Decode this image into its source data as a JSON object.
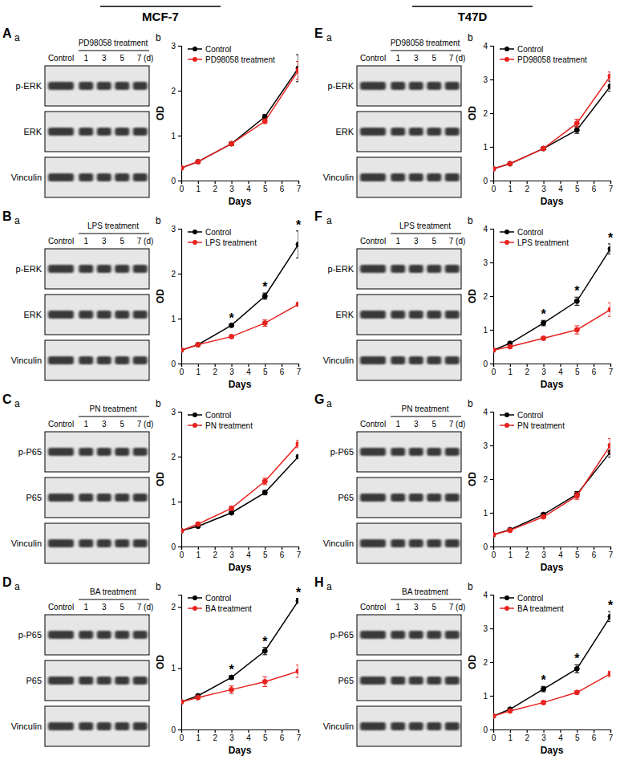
{
  "headers": [
    {
      "text": "MCF-7"
    },
    {
      "text": "T47D"
    }
  ],
  "chart_data": [
    {
      "type": "line",
      "panel": "A",
      "blot_label": "a",
      "chart_label": "b",
      "blot": {
        "treatment": "PD98058 treatment",
        "lanes": [
          "Control",
          "1",
          "3",
          "5",
          "7 (d)"
        ],
        "rows": [
          "p-ERK",
          "ERK",
          "Vinculin"
        ]
      },
      "x_label": "Days",
      "y_label": "OD",
      "x": [
        0,
        1,
        3,
        5,
        7
      ],
      "xlim": [
        0,
        7
      ],
      "xticks": [
        0,
        1,
        2,
        3,
        4,
        5,
        6,
        7
      ],
      "ylim": [
        0,
        3
      ],
      "yticks": [
        0,
        1,
        2,
        3
      ],
      "legend": "upper left",
      "series": [
        {
          "name": "Control",
          "color": "#000000",
          "marker": "circle",
          "values": [
            0.28,
            0.42,
            0.82,
            1.42,
            2.5
          ],
          "errors": [
            0.02,
            0.02,
            0.04,
            0.05,
            0.3
          ]
        },
        {
          "name": "PD98058 treatment",
          "color": "#e8231f",
          "marker": "circle",
          "values": [
            0.28,
            0.42,
            0.82,
            1.32,
            2.45
          ],
          "errors": [
            0.02,
            0.02,
            0.04,
            0.05,
            0.2
          ]
        }
      ],
      "annotations": []
    },
    {
      "type": "line",
      "panel": "B",
      "blot_label": "a",
      "chart_label": "b",
      "blot": {
        "treatment": "LPS treatment",
        "lanes": [
          "Control",
          "1",
          "3",
          "5",
          "7 (d)"
        ],
        "rows": [
          "p-ERK",
          "ERK",
          "Vinculin"
        ]
      },
      "x_label": "Days",
      "y_label": "OD",
      "x": [
        0,
        1,
        3,
        5,
        7
      ],
      "xlim": [
        0,
        7
      ],
      "xticks": [
        0,
        1,
        2,
        3,
        4,
        5,
        6,
        7
      ],
      "ylim": [
        0,
        3
      ],
      "yticks": [
        0,
        1,
        2,
        3
      ],
      "legend": "upper left",
      "series": [
        {
          "name": "Control",
          "color": "#000000",
          "marker": "circle",
          "values": [
            0.3,
            0.42,
            0.85,
            1.5,
            2.65
          ],
          "errors": [
            0.02,
            0.02,
            0.03,
            0.07,
            0.3
          ]
        },
        {
          "name": "LPS treatment",
          "color": "#e8231f",
          "marker": "circle",
          "values": [
            0.3,
            0.42,
            0.6,
            0.9,
            1.32
          ],
          "errors": [
            0.02,
            0.02,
            0.03,
            0.07,
            0.03
          ]
        }
      ],
      "annotations": [
        {
          "x": 3,
          "text": "*"
        },
        {
          "x": 5,
          "text": "*"
        },
        {
          "x": 7,
          "text": "*"
        }
      ]
    },
    {
      "type": "line",
      "panel": "C",
      "blot_label": "a",
      "chart_label": "b",
      "blot": {
        "treatment": "PN treatment",
        "lanes": [
          "Control",
          "1",
          "3",
          "5",
          "7 (d)"
        ],
        "rows": [
          "p-P65",
          "P65",
          "Vinculin"
        ]
      },
      "x_label": "Days",
      "y_label": "OD",
      "x": [
        0,
        1,
        3,
        5,
        7
      ],
      "xlim": [
        0,
        7
      ],
      "xticks": [
        0,
        1,
        2,
        3,
        4,
        5,
        6,
        7
      ],
      "ylim": [
        0,
        3
      ],
      "yticks": [
        0,
        1,
        2,
        3
      ],
      "legend": "upper left",
      "series": [
        {
          "name": "Control",
          "color": "#000000",
          "marker": "circle",
          "values": [
            0.35,
            0.45,
            0.75,
            1.2,
            2.0
          ],
          "errors": [
            0.02,
            0.02,
            0.03,
            0.05,
            0.03
          ]
        },
        {
          "name": "PN treatment",
          "color": "#e8231f",
          "marker": "circle",
          "values": [
            0.35,
            0.5,
            0.85,
            1.45,
            2.28
          ],
          "errors": [
            0.02,
            0.03,
            0.04,
            0.07,
            0.08
          ]
        }
      ],
      "annotations": []
    },
    {
      "type": "line",
      "panel": "D",
      "blot_label": "a",
      "chart_label": "b",
      "blot": {
        "treatment": "BA treatment",
        "lanes": [
          "Control",
          "1",
          "3",
          "5",
          "7 (d)"
        ],
        "rows": [
          "p-P65",
          "P65",
          "Vinculin"
        ]
      },
      "x_label": "Days",
      "y_label": "OD",
      "x": [
        0,
        1,
        3,
        5,
        7
      ],
      "xlim": [
        0,
        7
      ],
      "xticks": [
        0,
        1,
        2,
        3,
        4,
        5,
        6,
        7
      ],
      "ylim": [
        0,
        2.2
      ],
      "yticks": [
        0,
        1,
        2
      ],
      "legend": "upper left",
      "series": [
        {
          "name": "Control",
          "color": "#000000",
          "marker": "circle",
          "values": [
            0.45,
            0.55,
            0.85,
            1.28,
            2.1
          ],
          "errors": [
            0.02,
            0.02,
            0.03,
            0.06,
            0.04
          ]
        },
        {
          "name": "BA treatment",
          "color": "#e8231f",
          "marker": "circle",
          "values": [
            0.45,
            0.52,
            0.65,
            0.78,
            0.95
          ],
          "errors": [
            0.02,
            0.02,
            0.06,
            0.08,
            0.1
          ]
        }
      ],
      "annotations": [
        {
          "x": 3,
          "text": "*"
        },
        {
          "x": 5,
          "text": "*"
        },
        {
          "x": 7,
          "text": "*"
        }
      ]
    },
    {
      "type": "line",
      "panel": "E",
      "blot_label": "a",
      "chart_label": "b",
      "blot": {
        "treatment": "PD98058 treatment",
        "lanes": [
          "Control",
          "1",
          "3",
          "5",
          "7 (d)"
        ],
        "rows": [
          "p-ERK",
          "ERK",
          "Vinculin"
        ]
      },
      "x_label": "Days",
      "y_label": "OD",
      "x": [
        0,
        1,
        3,
        5,
        7
      ],
      "xlim": [
        0,
        7
      ],
      "xticks": [
        0,
        1,
        2,
        3,
        4,
        5,
        6,
        7
      ],
      "ylim": [
        0,
        4
      ],
      "yticks": [
        0,
        1,
        2,
        3,
        4
      ],
      "legend": "upper left",
      "series": [
        {
          "name": "Control",
          "color": "#000000",
          "marker": "circle",
          "values": [
            0.35,
            0.5,
            0.95,
            1.5,
            2.8
          ],
          "errors": [
            0.02,
            0.03,
            0.04,
            0.1,
            0.15
          ]
        },
        {
          "name": "PD98058 treatment",
          "color": "#e8231f",
          "marker": "circle",
          "values": [
            0.35,
            0.5,
            0.95,
            1.7,
            3.1
          ],
          "errors": [
            0.02,
            0.03,
            0.04,
            0.12,
            0.12
          ]
        }
      ],
      "annotations": []
    },
    {
      "type": "line",
      "panel": "F",
      "blot_label": "a",
      "chart_label": "b",
      "blot": {
        "treatment": "LPS treatment",
        "lanes": [
          "Control",
          "1",
          "3",
          "5",
          "7 (d)"
        ],
        "rows": [
          "p-ERK",
          "ERK",
          "Vinculin"
        ]
      },
      "x_label": "Days",
      "y_label": "OD",
      "x": [
        0,
        1,
        3,
        5,
        7
      ],
      "xlim": [
        0,
        7
      ],
      "xticks": [
        0,
        1,
        2,
        3,
        4,
        5,
        6,
        7
      ],
      "ylim": [
        0,
        4
      ],
      "yticks": [
        0,
        1,
        2,
        3,
        4
      ],
      "legend": "upper left",
      "series": [
        {
          "name": "Control",
          "color": "#000000",
          "marker": "circle",
          "values": [
            0.4,
            0.6,
            1.2,
            1.85,
            3.4
          ],
          "errors": [
            0.02,
            0.03,
            0.08,
            0.12,
            0.15
          ]
        },
        {
          "name": "LPS treatment",
          "color": "#e8231f",
          "marker": "circle",
          "values": [
            0.4,
            0.5,
            0.75,
            1.0,
            1.6
          ],
          "errors": [
            0.02,
            0.03,
            0.05,
            0.12,
            0.2
          ]
        }
      ],
      "annotations": [
        {
          "x": 3,
          "text": "*"
        },
        {
          "x": 5,
          "text": "*"
        },
        {
          "x": 7,
          "text": "*"
        }
      ]
    },
    {
      "type": "line",
      "panel": "G",
      "blot_label": "a",
      "chart_label": "b",
      "blot": {
        "treatment": "PN treatment",
        "lanes": [
          "Control",
          "1",
          "3",
          "5",
          "7 (d)"
        ],
        "rows": [
          "p-P65",
          "P65",
          "Vinculin"
        ]
      },
      "x_label": "Days",
      "y_label": "OD",
      "x": [
        0,
        1,
        3,
        5,
        7
      ],
      "xlim": [
        0,
        7
      ],
      "xticks": [
        0,
        1,
        2,
        3,
        4,
        5,
        6,
        7
      ],
      "ylim": [
        0,
        4
      ],
      "yticks": [
        0,
        1,
        2,
        3,
        4
      ],
      "legend": "upper left",
      "series": [
        {
          "name": "Control",
          "color": "#000000",
          "marker": "circle",
          "values": [
            0.35,
            0.5,
            0.95,
            1.55,
            2.8
          ],
          "errors": [
            0.02,
            0.03,
            0.04,
            0.08,
            0.15
          ]
        },
        {
          "name": "PN treatment",
          "color": "#e8231f",
          "marker": "circle",
          "values": [
            0.35,
            0.48,
            0.88,
            1.5,
            3.0
          ],
          "errors": [
            0.02,
            0.03,
            0.04,
            0.1,
            0.2
          ]
        }
      ],
      "annotations": []
    },
    {
      "type": "line",
      "panel": "H",
      "blot_label": "a",
      "chart_label": "b",
      "blot": {
        "treatment": "BA treatment",
        "lanes": [
          "Control",
          "1",
          "3",
          "5",
          "7 (d)"
        ],
        "rows": [
          "p-P65",
          "P65",
          "Vinculin"
        ]
      },
      "x_label": "Days",
      "y_label": "OD",
      "x": [
        0,
        1,
        3,
        5,
        7
      ],
      "xlim": [
        0,
        7
      ],
      "xticks": [
        0,
        1,
        2,
        3,
        4,
        5,
        6,
        7
      ],
      "ylim": [
        0,
        4
      ],
      "yticks": [
        0,
        1,
        2,
        3,
        4
      ],
      "legend": "upper left",
      "series": [
        {
          "name": "Control",
          "color": "#000000",
          "marker": "circle",
          "values": [
            0.4,
            0.6,
            1.2,
            1.8,
            3.35
          ],
          "errors": [
            0.02,
            0.03,
            0.08,
            0.12,
            0.15
          ]
        },
        {
          "name": "BA treatment",
          "color": "#e8231f",
          "marker": "circle",
          "values": [
            0.4,
            0.55,
            0.8,
            1.1,
            1.65
          ],
          "errors": [
            0.02,
            0.03,
            0.05,
            0.05,
            0.08
          ]
        }
      ],
      "annotations": [
        {
          "x": 3,
          "text": "*"
        },
        {
          "x": 5,
          "text": "*"
        },
        {
          "x": 7,
          "text": "*"
        }
      ]
    }
  ]
}
